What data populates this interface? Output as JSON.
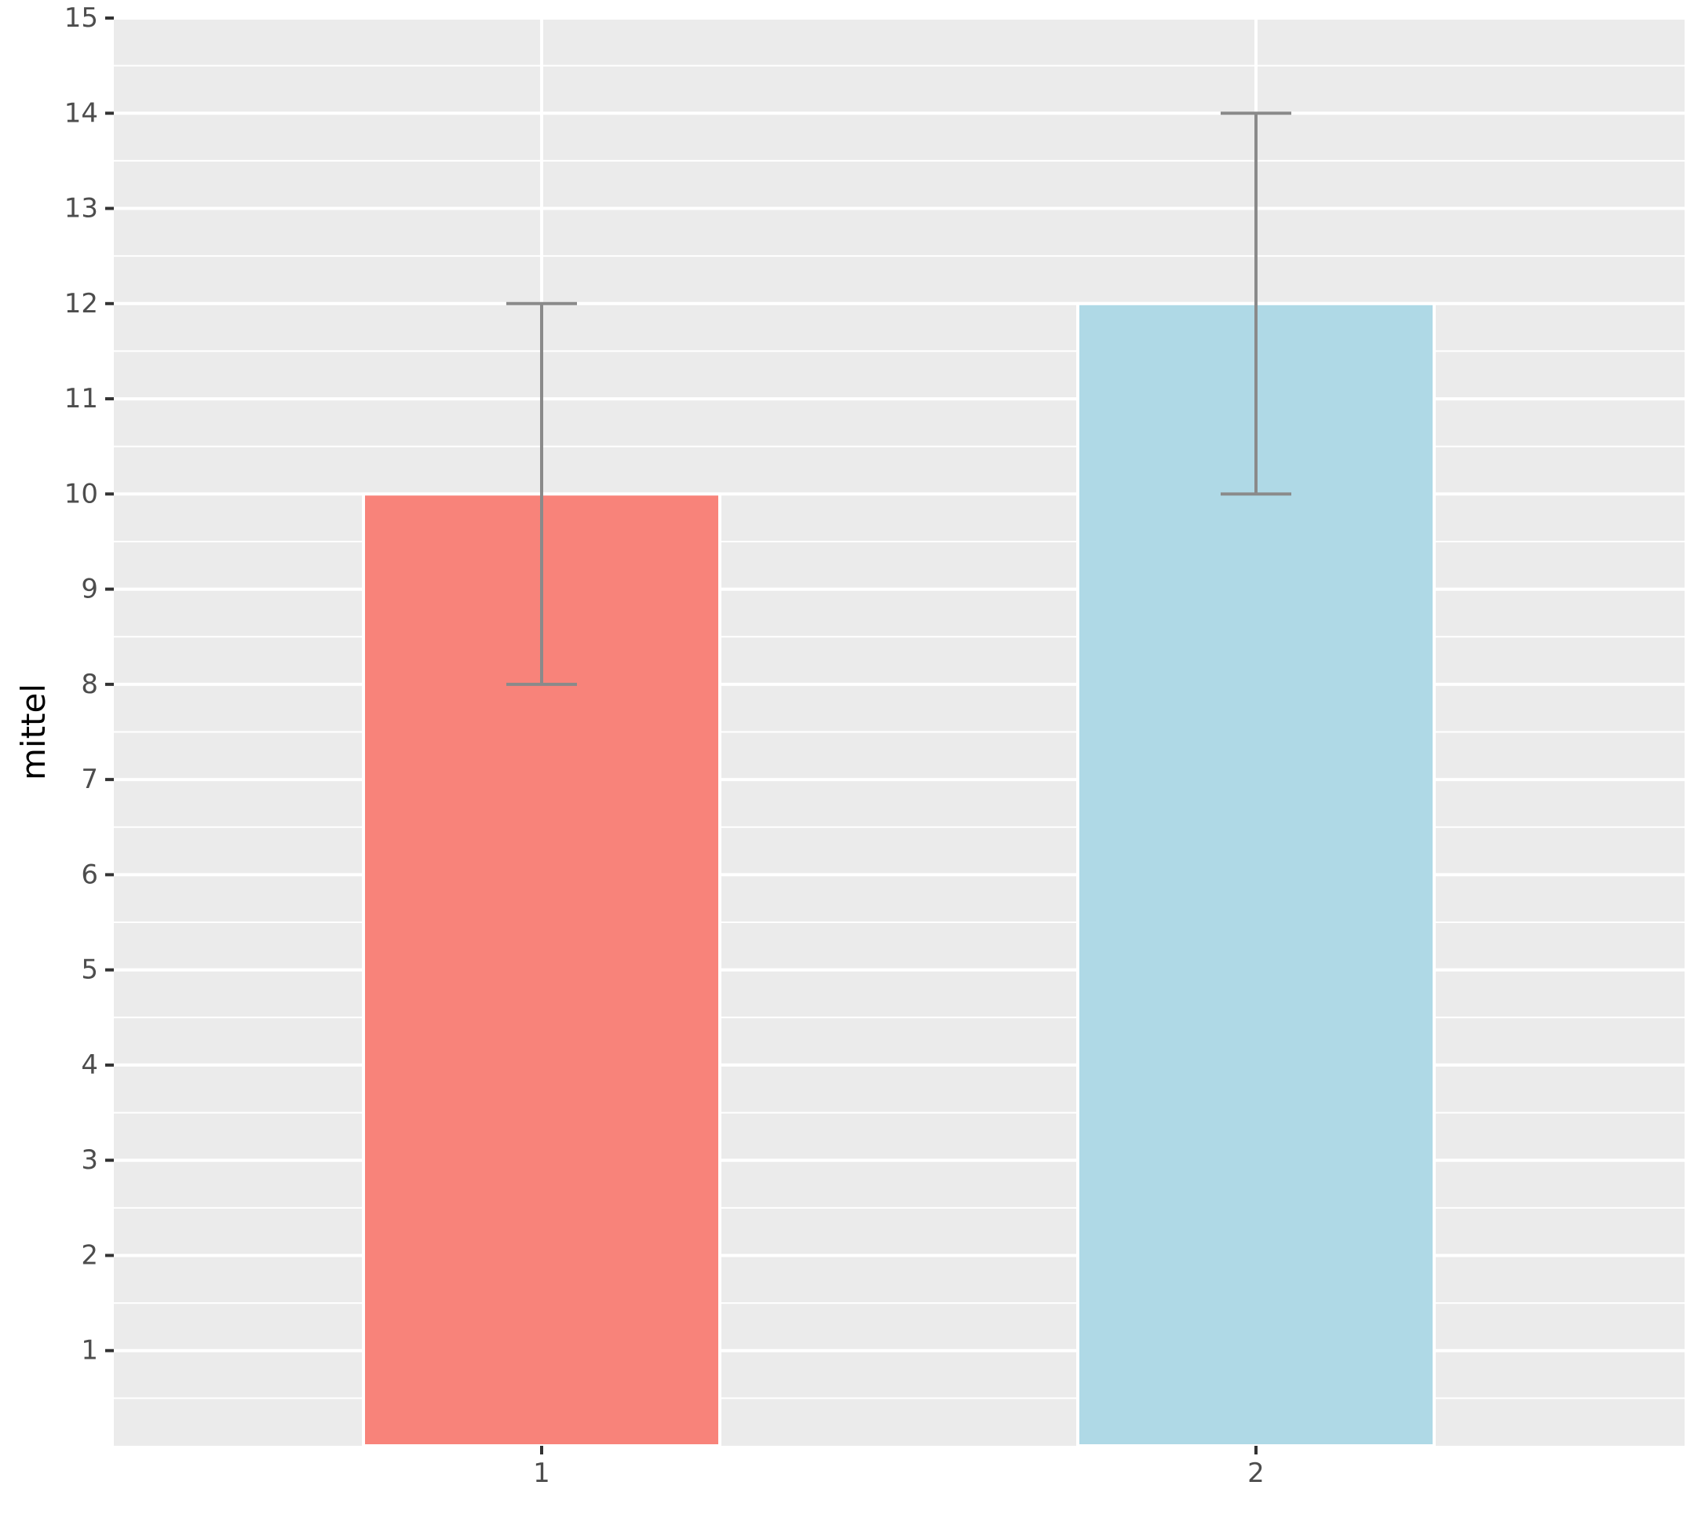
{
  "chart_data": {
    "type": "bar",
    "title": "",
    "xlabel": "",
    "ylabel": "mittel",
    "categories": [
      "1",
      "2"
    ],
    "values": [
      10,
      12
    ],
    "error_bars": [
      {
        "category": "1",
        "lower": 8,
        "upper": 12
      },
      {
        "category": "2",
        "lower": 10,
        "upper": 14
      }
    ],
    "bar_colors": [
      "#f8837a",
      "#afd9e6"
    ],
    "errorbar_color": "#8a8a8a",
    "panel_background": "#ebebeb",
    "grid_color": "#ffffff",
    "ylim": [
      0,
      15
    ],
    "yticks": [
      1,
      2,
      3,
      4,
      5,
      6,
      7,
      8,
      9,
      10,
      11,
      12,
      13,
      14,
      15
    ],
    "grid": true,
    "legend": "none"
  }
}
